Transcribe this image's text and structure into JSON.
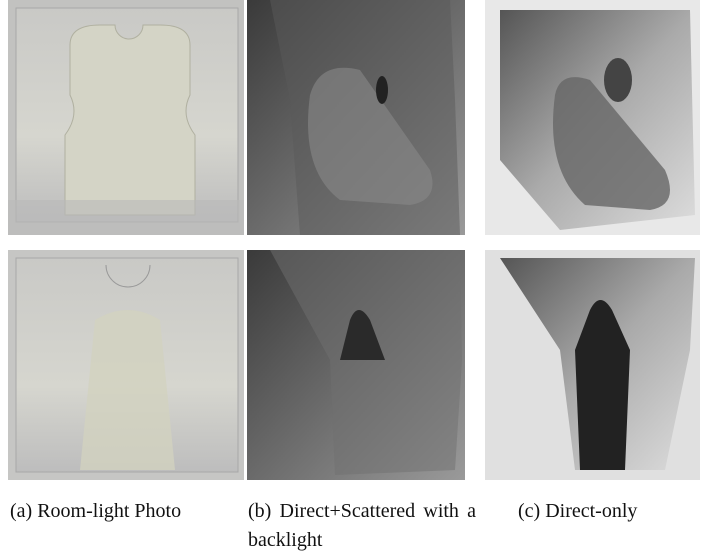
{
  "figure": {
    "panels": [
      {
        "label": "(a)",
        "caption": "Room-light Photo"
      },
      {
        "label": "(b)",
        "caption": "Direct+Scattered with a backlight"
      },
      {
        "label": "(c)",
        "caption": "Direct-only"
      }
    ]
  }
}
